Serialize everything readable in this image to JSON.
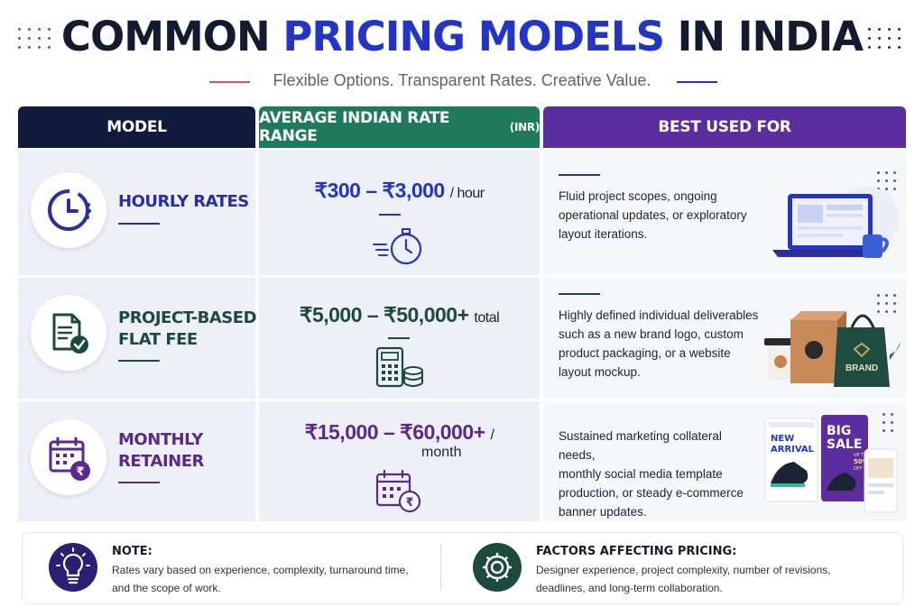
{
  "header": {
    "title_part1": "COMMON",
    "title_accent": "PRICING MODELS",
    "title_part2": "IN INDIA",
    "subtitle": "Flexible Options. Transparent Rates. Creative Value."
  },
  "table": {
    "columns": {
      "model": "MODEL",
      "rate": "AVERAGE INDIAN RATE RANGE",
      "rate_suffix": "(INR)",
      "best": "BEST USED FOR"
    },
    "rows": [
      {
        "name_line1": "HOURLY RATES",
        "name_line2": "",
        "rate": "₹300 – ₹3,000",
        "rate_unit": "/ hour",
        "rate_unit2": "",
        "desc": [
          "Fluid project scopes, ongoing",
          "operational updates, or exploratory",
          "layout iterations."
        ],
        "icon": "clock-icon",
        "rate_icon": "stopwatch-icon",
        "illustration": "laptop-mug-illustration",
        "color": "#2a2f9c"
      },
      {
        "name_line1": "PROJECT-BASED",
        "name_line2": "FLAT FEE",
        "rate": "₹5,000 – ₹50,000+",
        "rate_unit": "total",
        "rate_unit2": "",
        "desc": [
          "Highly defined individual deliverables",
          "such as a new brand logo, custom",
          "product packaging, or a website",
          "layout mockup."
        ],
        "icon": "document-check-icon",
        "rate_icon": "calculator-coins-icon",
        "illustration": "brand-packaging-illustration",
        "color": "#1d4a3e"
      },
      {
        "name_line1": "MONTHLY",
        "name_line2": "RETAINER",
        "rate": "₹15,000 – ₹60,000+",
        "rate_unit": "/",
        "rate_unit2": "month",
        "desc": [
          "Sustained marketing collateral needs,",
          "monthly social media template",
          "production, or steady e-commerce",
          "banner updates."
        ],
        "icon": "calendar-rupee-icon",
        "rate_icon": "calendar-rupee-icon",
        "illustration": "social-posts-illustration",
        "color": "#5a2a8a"
      }
    ]
  },
  "illustrations": {
    "brand_bag_text": "BRAND",
    "post1": [
      "NEW",
      "ARRIVAL"
    ],
    "post2": [
      "BIG",
      "SALE",
      "UP TO",
      "50%",
      "OFF"
    ]
  },
  "footer": {
    "note_title": "NOTE:",
    "note_text": [
      "Rates vary based on experience, complexity, turnaround time,",
      "and the scope of work."
    ],
    "factors_title": "FACTORS AFFECTING PRICING:",
    "factors_text": [
      "Designer experience, project complexity, number of revisions,",
      "deadlines, and long-term collaboration."
    ]
  },
  "colors": {
    "navy": "#111a3a",
    "green": "#1f7a5c",
    "purple": "#5b2d9e",
    "accent_blue": "#2434c4",
    "cell_bg": "#eef0f8"
  }
}
